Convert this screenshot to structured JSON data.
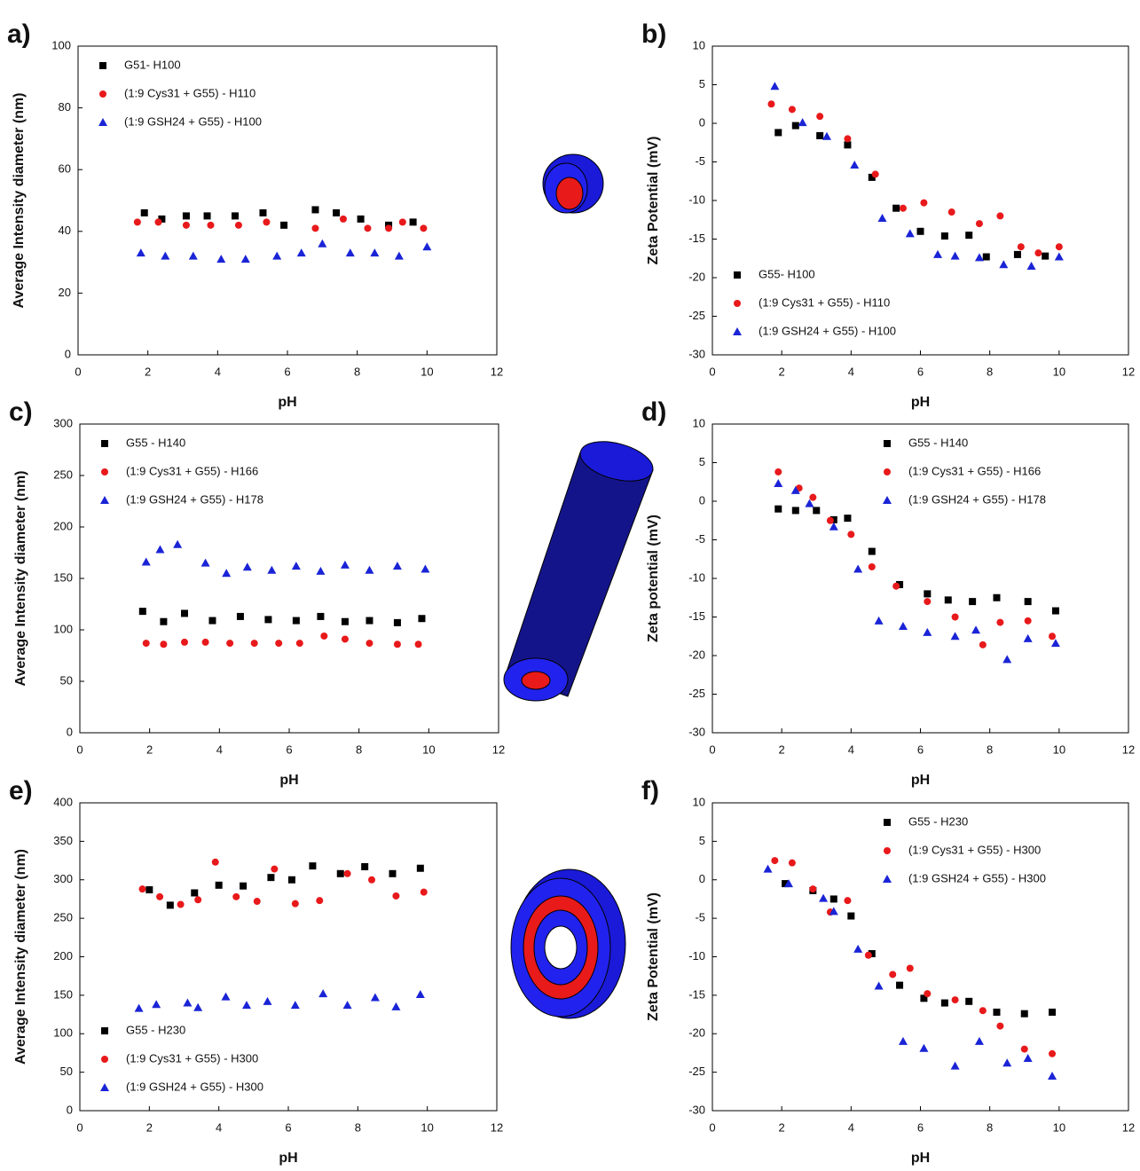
{
  "chart_data": [
    {
      "type": "scatter",
      "label": "a)",
      "xlabel": "pH",
      "ylabel": "Average Intensity diameter (nm)",
      "xlim": [
        0,
        12
      ],
      "xticks": [
        0,
        2,
        4,
        6,
        8,
        10,
        12
      ],
      "ylim": [
        0,
        100
      ],
      "yticks": [
        0,
        20,
        40,
        60,
        80,
        100
      ],
      "legend": "top-left",
      "series": [
        {
          "name": "G51- H100",
          "color": "#000000",
          "marker": "square",
          "x": [
            1.9,
            2.4,
            3.1,
            3.7,
            4.5,
            5.3,
            5.9,
            6.8,
            7.4,
            8.1,
            8.9,
            9.6
          ],
          "values": [
            46,
            44,
            45,
            45,
            45,
            46,
            42,
            47,
            46,
            44,
            42,
            43
          ]
        },
        {
          "name": "(1:9 Cys31 + G55) - H110",
          "color": "#e8191b",
          "marker": "circle",
          "x": [
            1.7,
            2.3,
            3.1,
            3.8,
            4.6,
            5.4,
            6.8,
            7.6,
            8.3,
            8.9,
            9.3,
            9.9
          ],
          "values": [
            43,
            43,
            42,
            42,
            42,
            43,
            41,
            44,
            41,
            41,
            43,
            41
          ]
        },
        {
          "name": "(1:9 GSH24 + G55) - H100",
          "color": "#1a24d6",
          "marker": "triangle",
          "x": [
            1.8,
            2.5,
            3.3,
            4.1,
            4.8,
            5.7,
            6.4,
            7.0,
            7.8,
            8.5,
            9.2,
            10.0
          ],
          "values": [
            33,
            32,
            32,
            31,
            31,
            32,
            33,
            36,
            33,
            33,
            32,
            35
          ]
        }
      ]
    },
    {
      "type": "scatter",
      "label": "b)",
      "xlabel": "pH",
      "ylabel": "Zeta Potential (mV)",
      "xlim": [
        0,
        12
      ],
      "xticks": [
        0,
        2,
        4,
        6,
        8,
        10,
        12
      ],
      "ylim": [
        -30,
        10
      ],
      "yticks": [
        -30,
        -25,
        -20,
        -15,
        -10,
        -5,
        0,
        5,
        10
      ],
      "legend": "bottom-left",
      "series": [
        {
          "name": "G55- H100",
          "color": "#000000",
          "marker": "square",
          "x": [
            1.9,
            2.4,
            3.1,
            3.9,
            4.6,
            5.3,
            6.0,
            6.7,
            7.4,
            7.9,
            8.8,
            9.6
          ],
          "values": [
            -1.2,
            -0.3,
            -1.6,
            -2.8,
            -7,
            -11,
            -14,
            -14.6,
            -14.5,
            -17.3,
            -17,
            -17.2
          ]
        },
        {
          "name": "(1:9 Cys31 + G55) - H110",
          "color": "#e8191b",
          "marker": "circle",
          "x": [
            1.7,
            2.3,
            3.1,
            3.9,
            4.7,
            5.5,
            6.1,
            6.9,
            7.7,
            8.3,
            8.9,
            9.4,
            10.0
          ],
          "values": [
            2.5,
            1.8,
            0.9,
            -2,
            -6.6,
            -11,
            -10.3,
            -11.5,
            -13,
            -12,
            -16,
            -16.8,
            -16
          ]
        },
        {
          "name": "(1:9 GSH24 + G55) - H100",
          "color": "#1a24d6",
          "marker": "triangle",
          "x": [
            1.8,
            2.6,
            3.3,
            4.1,
            4.9,
            5.7,
            6.5,
            7.0,
            7.7,
            8.4,
            9.2,
            10.0
          ],
          "values": [
            4.8,
            0.1,
            -1.7,
            -5.4,
            -12.3,
            -14.3,
            -17,
            -17.2,
            -17.4,
            -18.3,
            -18.5,
            -17.3
          ]
        }
      ]
    },
    {
      "type": "scatter",
      "label": "c)",
      "xlabel": "pH",
      "ylabel": "Average Intensity diameter (nm)",
      "xlim": [
        0,
        12
      ],
      "xticks": [
        0,
        2,
        4,
        6,
        8,
        10,
        12
      ],
      "ylim": [
        0,
        300
      ],
      "yticks": [
        0,
        50,
        100,
        150,
        200,
        250,
        300
      ],
      "legend": "top-left",
      "series": [
        {
          "name": "G55 - H140",
          "color": "#000000",
          "marker": "square",
          "x": [
            1.8,
            2.4,
            3.0,
            3.8,
            4.6,
            5.4,
            6.2,
            6.9,
            7.6,
            8.3,
            9.1,
            9.8
          ],
          "values": [
            118,
            108,
            116,
            109,
            113,
            110,
            109,
            113,
            108,
            109,
            107,
            111
          ]
        },
        {
          "name": "(1:9 Cys31 + G55) - H166",
          "color": "#e8191b",
          "marker": "circle",
          "x": [
            1.9,
            2.4,
            3.0,
            3.6,
            4.3,
            5.0,
            5.7,
            6.3,
            7.0,
            7.6,
            8.3,
            9.1,
            9.7
          ],
          "values": [
            87,
            86,
            88,
            88,
            87,
            87,
            87,
            87,
            94,
            91,
            87,
            86,
            86
          ]
        },
        {
          "name": "(1:9 GSH24 + G55) - H178",
          "color": "#1a24d6",
          "marker": "triangle",
          "x": [
            1.9,
            2.3,
            2.8,
            3.6,
            4.2,
            4.8,
            5.5,
            6.2,
            6.9,
            7.6,
            8.3,
            9.1,
            9.9
          ],
          "values": [
            166,
            178,
            183,
            165,
            155,
            161,
            158,
            162,
            157,
            163,
            158,
            162,
            159
          ]
        }
      ]
    },
    {
      "type": "scatter",
      "label": "d)",
      "xlabel": "pH",
      "ylabel": "Zeta potential (mV)",
      "xlim": [
        0,
        12
      ],
      "xticks": [
        0,
        2,
        4,
        6,
        8,
        10,
        12
      ],
      "ylim": [
        -30,
        10
      ],
      "yticks": [
        -30,
        -25,
        -20,
        -15,
        -10,
        -5,
        0,
        5,
        10
      ],
      "legend": "top-right",
      "series": [
        {
          "name": "G55 - H140",
          "color": "#000000",
          "marker": "square",
          "x": [
            1.9,
            2.4,
            3.0,
            3.5,
            3.9,
            4.6,
            5.4,
            6.2,
            6.8,
            7.5,
            8.2,
            9.1,
            9.9
          ],
          "values": [
            -1,
            -1.2,
            -1.2,
            -2.4,
            -2.2,
            -6.5,
            -10.8,
            -12,
            -12.8,
            -13,
            -12.5,
            -13,
            -14.2
          ]
        },
        {
          "name": "(1:9 Cys31 + G55) - H166",
          "color": "#e8191b",
          "marker": "circle",
          "x": [
            1.9,
            2.5,
            2.9,
            3.4,
            4.0,
            4.6,
            5.3,
            6.2,
            7.0,
            7.8,
            8.3,
            9.1,
            9.8
          ],
          "values": [
            3.8,
            1.7,
            0.5,
            -2.5,
            -4.3,
            -8.5,
            -11,
            -13,
            -15,
            -18.6,
            -15.7,
            -15.5,
            -17.5
          ]
        },
        {
          "name": "(1:9 GSH24 + G55) - H178",
          "color": "#1a24d6",
          "marker": "triangle",
          "x": [
            1.9,
            2.4,
            2.8,
            3.5,
            4.2,
            4.8,
            5.5,
            6.2,
            7.0,
            7.6,
            8.5,
            9.1,
            9.9
          ],
          "values": [
            2.3,
            1.4,
            -0.3,
            -3.3,
            -8.8,
            -15.5,
            -16.2,
            -17,
            -17.5,
            -16.7,
            -20.5,
            -17.8,
            -18.4
          ]
        }
      ]
    },
    {
      "type": "scatter",
      "label": "e)",
      "xlabel": "pH",
      "ylabel": "Average Intensity diameter (nm)",
      "xlim": [
        0,
        12
      ],
      "xticks": [
        0,
        2,
        4,
        6,
        8,
        10,
        12
      ],
      "ylim": [
        0,
        400
      ],
      "yticks": [
        0,
        50,
        100,
        150,
        200,
        250,
        300,
        350,
        400
      ],
      "legend": "bottom-left",
      "series": [
        {
          "name": "G55 - H230",
          "color": "#000000",
          "marker": "square",
          "x": [
            2.0,
            2.6,
            3.3,
            4.0,
            4.7,
            5.5,
            6.1,
            6.7,
            7.5,
            8.2,
            9.0,
            9.8
          ],
          "values": [
            287,
            267,
            283,
            293,
            292,
            303,
            300,
            318,
            308,
            317,
            308,
            315
          ]
        },
        {
          "name": "(1:9 Cys31 + G55) - H300",
          "color": "#e8191b",
          "marker": "circle",
          "x": [
            1.8,
            2.3,
            2.9,
            3.4,
            3.9,
            4.5,
            5.1,
            5.6,
            6.2,
            6.9,
            7.7,
            8.4,
            9.1,
            9.9
          ],
          "values": [
            288,
            278,
            268,
            274,
            323,
            278,
            272,
            314,
            269,
            273,
            308,
            300,
            279,
            284
          ]
        },
        {
          "name": "(1:9 GSH24 + G55) - H300",
          "color": "#1a24d6",
          "marker": "triangle",
          "x": [
            1.7,
            2.2,
            3.1,
            3.4,
            4.2,
            4.8,
            5.4,
            6.2,
            7.0,
            7.7,
            8.5,
            9.1,
            9.8
          ],
          "values": [
            133,
            138,
            140,
            134,
            148,
            137,
            142,
            137,
            152,
            137,
            147,
            135,
            151
          ]
        }
      ]
    },
    {
      "type": "scatter",
      "label": "f)",
      "xlabel": "pH",
      "ylabel": "Zeta Potential (mV)",
      "xlim": [
        0,
        12
      ],
      "xticks": [
        0,
        2,
        4,
        6,
        8,
        10,
        12
      ],
      "ylim": [
        -30,
        10
      ],
      "yticks": [
        -30,
        -25,
        -20,
        -15,
        -10,
        -5,
        0,
        5,
        10
      ],
      "legend": "top-right",
      "series": [
        {
          "name": "G55 - H230",
          "color": "#000000",
          "marker": "square",
          "x": [
            2.1,
            2.9,
            3.5,
            4.0,
            4.6,
            5.4,
            6.1,
            6.7,
            7.4,
            8.2,
            9.0,
            9.8
          ],
          "values": [
            -0.5,
            -1.4,
            -2.5,
            -4.7,
            -9.6,
            -13.7,
            -15.4,
            -16,
            -15.8,
            -17.2,
            -17.4,
            -17.2
          ]
        },
        {
          "name": "(1:9 Cys31 + G55) - H300",
          "color": "#e8191b",
          "marker": "circle",
          "x": [
            1.8,
            2.3,
            2.9,
            3.4,
            3.9,
            4.5,
            5.2,
            5.7,
            6.2,
            7.0,
            7.8,
            8.3,
            9.0,
            9.8
          ],
          "values": [
            2.5,
            2.2,
            -1.2,
            -4.2,
            -2.7,
            -9.8,
            -12.3,
            -11.5,
            -14.8,
            -15.6,
            -17,
            -19,
            -22,
            -22.6
          ]
        },
        {
          "name": "(1:9 GSH24 + G55) - H300",
          "color": "#1a24d6",
          "marker": "triangle",
          "x": [
            1.6,
            2.2,
            3.2,
            3.5,
            4.2,
            4.8,
            5.5,
            6.1,
            7.0,
            7.7,
            8.5,
            9.1,
            9.8
          ],
          "values": [
            1.4,
            -0.5,
            -2.4,
            -4.1,
            -9,
            -13.8,
            -21,
            -21.9,
            -24.2,
            -21,
            -23.8,
            -23.2,
            -25.5
          ]
        }
      ]
    }
  ]
}
